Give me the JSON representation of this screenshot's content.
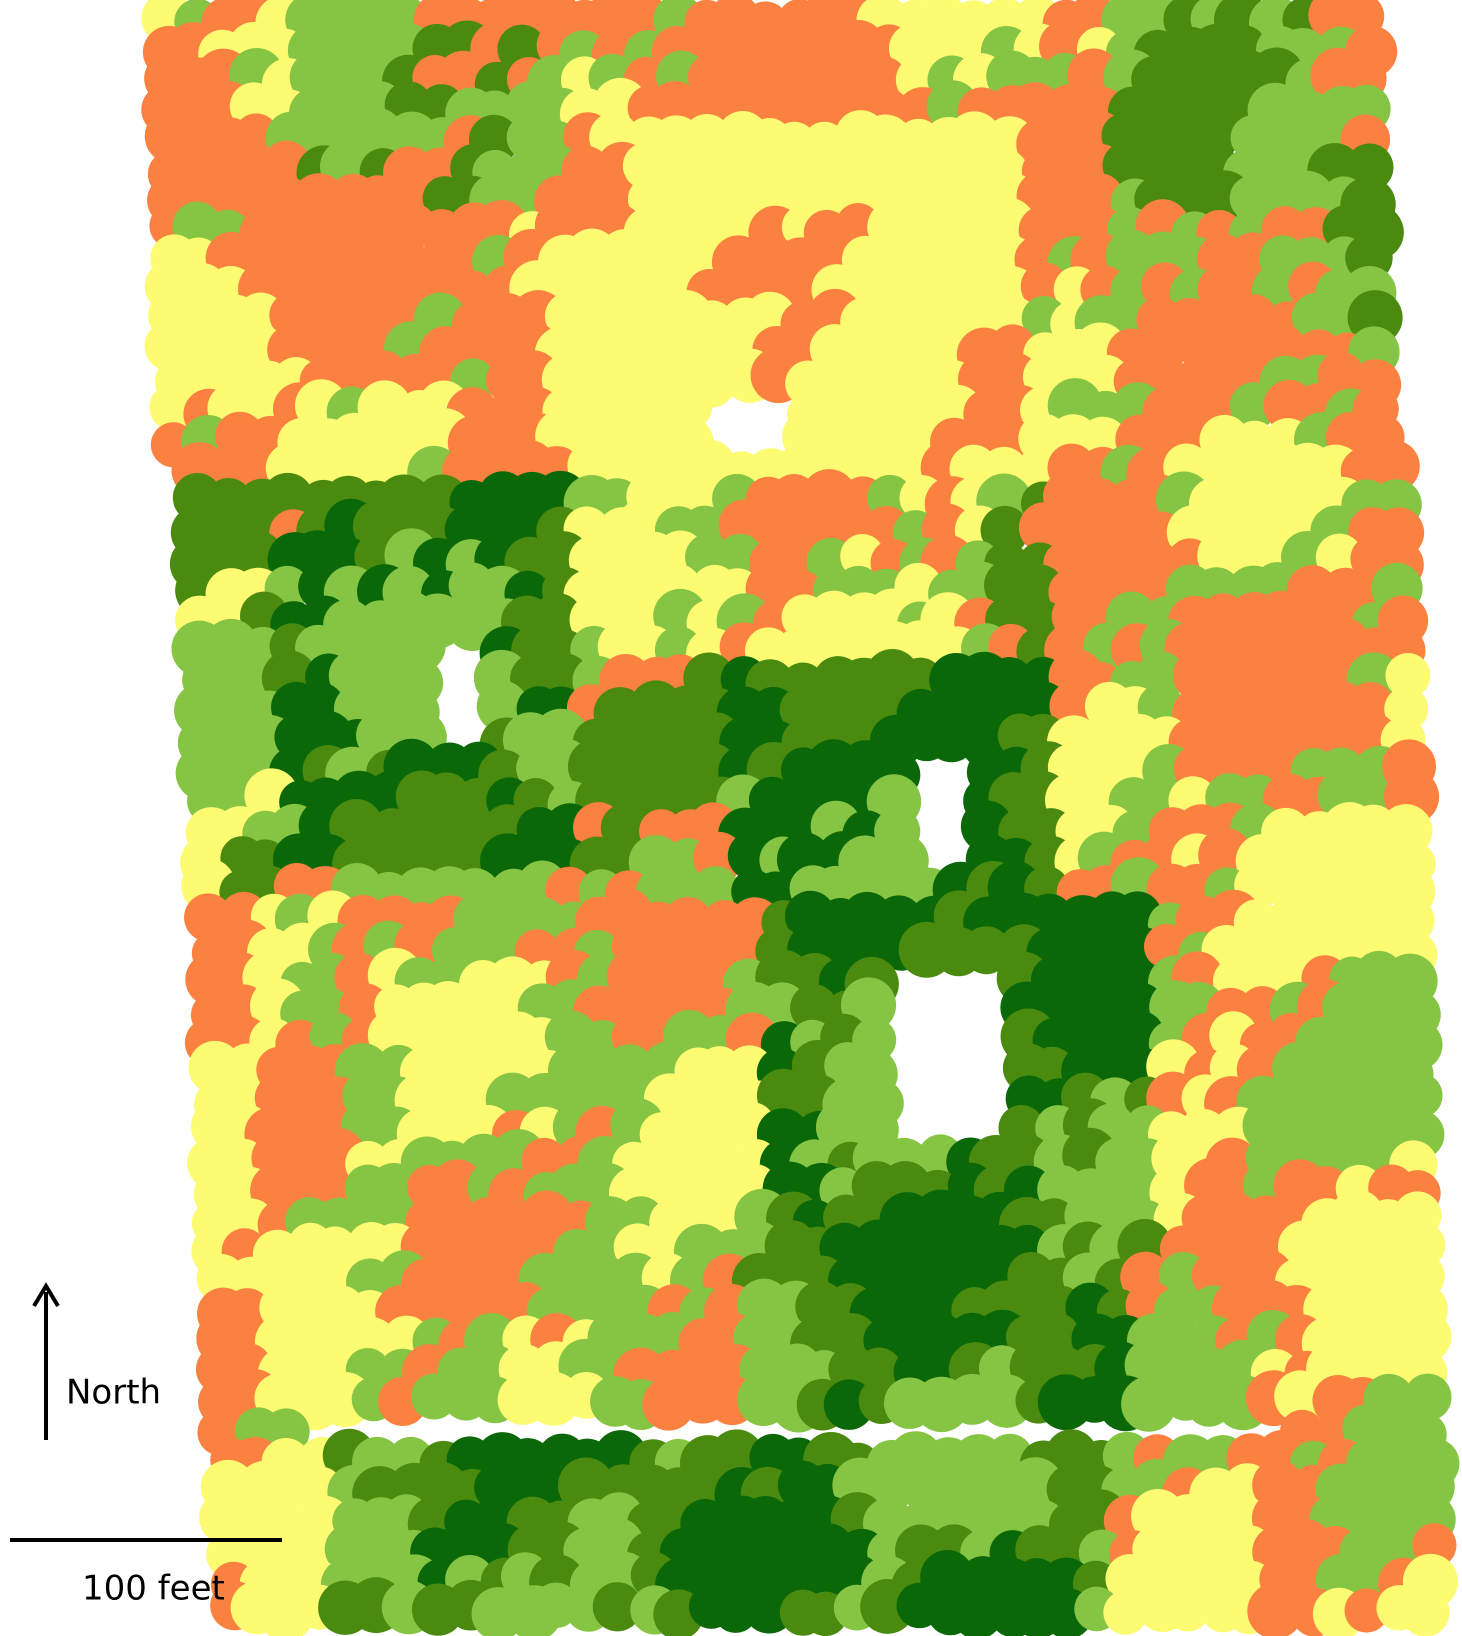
{
  "north_label": "North",
  "scale_label": "100 feet"
}
